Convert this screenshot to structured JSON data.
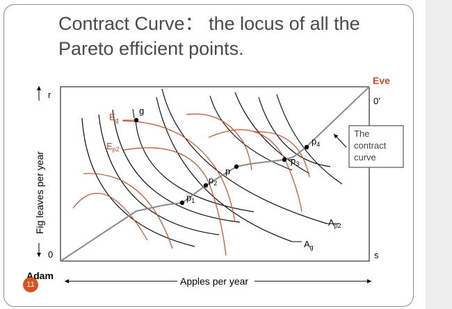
{
  "title": {
    "line1": "Contract Curve： the locus of all the",
    "line2": "Pareto efficient points."
  },
  "labels": {
    "eve": "Eve",
    "origin_eve": "0’",
    "r": "r",
    "zero": "0",
    "s": "s",
    "adam": "Adam",
    "y_axis": "Fig leaves per year",
    "x_axis": "Apples per year",
    "g": "g",
    "p": "p",
    "p1_base": "p",
    "p1_sub": "1",
    "p2_base": "p",
    "p2_sub": "2",
    "p3_base": "p",
    "p3_sub": "3",
    "p4_base": "p",
    "p4_sub": "4",
    "Eg_base": "E",
    "Eg_sub": "g",
    "Ep2_base": "E",
    "Ep2_sub": "p2",
    "Ap2_base": "A",
    "Ap2_sub": "p2",
    "Ag_base": "A",
    "Ag_sub": "g"
  },
  "callout": {
    "line1": "The",
    "line2": "contract",
    "line3": "curve"
  },
  "slide_number": "11",
  "colors": {
    "adam_curves": "#111111",
    "eve_curves": "#e2461b",
    "contract_curve": "#8a8a8a",
    "eve_label": "#e2461b",
    "badge": "#d9531e"
  }
}
